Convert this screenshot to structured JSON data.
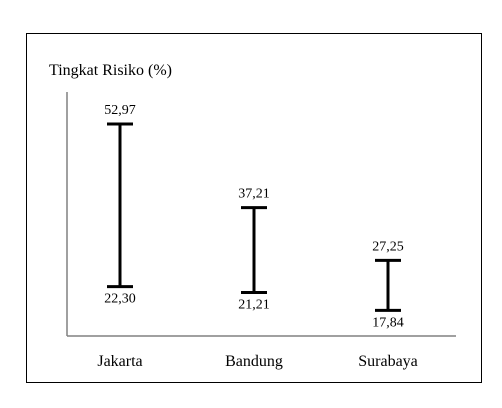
{
  "chart_data": {
    "type": "range-bar",
    "ylabel": "Tingkat Risiko (%)",
    "categories": [
      "Jakarta",
      "Bandung",
      "Surabaya"
    ],
    "series": [
      {
        "high": [
          52.97,
          37.21,
          27.25
        ],
        "low": [
          22.3,
          21.21,
          17.84
        ],
        "high_labels": [
          "52,97",
          "37,21",
          "27,25"
        ],
        "low_labels": [
          "22,30",
          "21,21",
          "17,84"
        ]
      }
    ],
    "ylim": [
      13,
      59
    ],
    "grid": false,
    "legend": "none",
    "colors": {
      "bar": "#000000",
      "axis": "#808080",
      "frame": "#000000"
    }
  }
}
